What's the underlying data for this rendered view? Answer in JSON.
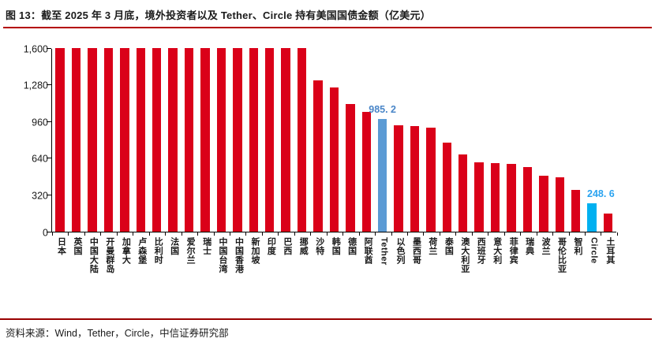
{
  "header": {
    "figure_label": "图 13",
    "title": "图 13：截至 2025 年 3 月底，境外投资者以及 Tether、Circle 持有美国国债金额（亿美元）"
  },
  "footer": {
    "source": "资料来源：Wind，Tether，Circle，中信证券研究部"
  },
  "colors": {
    "bar_default": "#da0019",
    "bar_tether": "#5b9bd5",
    "bar_circle": "#00b0f0",
    "label_tether": "#4a86c8",
    "label_circle": "#2aa3f0",
    "rule_top": "#b40000",
    "rule_bottom": "#990000",
    "axis": "#000000"
  },
  "chart_data": {
    "type": "bar",
    "title": "图 13：截至 2025 年 3 月底，境外投资者以及 Tether、Circle 持有美国国债金额（亿美元）",
    "unit": "亿美元",
    "xlabel": "",
    "ylabel": "",
    "ylim": [
      0,
      1600
    ],
    "grid": false,
    "legend": false,
    "note": "Bars marked clipped reach the 1,600 axis maximum (actual holdings exceed the visible scale). Only Tether and Circle carry data labels.",
    "yticks": [
      {
        "label": "0",
        "value": 0
      },
      {
        "label": "320",
        "value": 320
      },
      {
        "label": "640",
        "value": 640
      },
      {
        "label": "960",
        "value": 960
      },
      {
        "label": "1,280",
        "value": 1280
      },
      {
        "label": "1,600",
        "value": 1600
      }
    ],
    "items": [
      {
        "label": "日本",
        "value": 1600,
        "clipped": true
      },
      {
        "label": "英国",
        "value": 1600,
        "clipped": true
      },
      {
        "label": "中国大陆",
        "value": 1600,
        "clipped": true
      },
      {
        "label": "开曼群岛",
        "value": 1600,
        "clipped": true
      },
      {
        "label": "加拿大",
        "value": 1600,
        "clipped": true
      },
      {
        "label": "卢森堡",
        "value": 1600,
        "clipped": true
      },
      {
        "label": "比利时",
        "value": 1600,
        "clipped": true
      },
      {
        "label": "法国",
        "value": 1600,
        "clipped": true
      },
      {
        "label": "爱尔兰",
        "value": 1600,
        "clipped": true
      },
      {
        "label": "瑞士",
        "value": 1600,
        "clipped": true
      },
      {
        "label": "中国台湾",
        "value": 1600,
        "clipped": true
      },
      {
        "label": "中国香港",
        "value": 1600,
        "clipped": true
      },
      {
        "label": "新加坡",
        "value": 1600,
        "clipped": true
      },
      {
        "label": "印度",
        "value": 1600,
        "clipped": true
      },
      {
        "label": "巴西",
        "value": 1600,
        "clipped": true
      },
      {
        "label": "挪威",
        "value": 1600,
        "clipped": true
      },
      {
        "label": "沙特",
        "value": 1320
      },
      {
        "label": "韩国",
        "value": 1258
      },
      {
        "label": "德国",
        "value": 1115
      },
      {
        "label": "阿联酋",
        "value": 1045
      },
      {
        "label": "Tether",
        "value": 985.2,
        "highlight": "tether",
        "data_label": "985. 2"
      },
      {
        "label": "以色列",
        "value": 928
      },
      {
        "label": "墨西哥",
        "value": 917
      },
      {
        "label": "荷兰",
        "value": 908
      },
      {
        "label": "泰国",
        "value": 777
      },
      {
        "label": "澳大利亚",
        "value": 670
      },
      {
        "label": "西班牙",
        "value": 603
      },
      {
        "label": "意大利",
        "value": 597
      },
      {
        "label": "菲律宾",
        "value": 592
      },
      {
        "label": "瑞典",
        "value": 560
      },
      {
        "label": "波兰",
        "value": 486
      },
      {
        "label": "哥伦比亚",
        "value": 475
      },
      {
        "label": "智利",
        "value": 366
      },
      {
        "label": "Circle",
        "value": 248.6,
        "highlight": "circle",
        "data_label": "248. 6",
        "label_align": "left"
      },
      {
        "label": "土耳其",
        "value": 156
      }
    ]
  }
}
